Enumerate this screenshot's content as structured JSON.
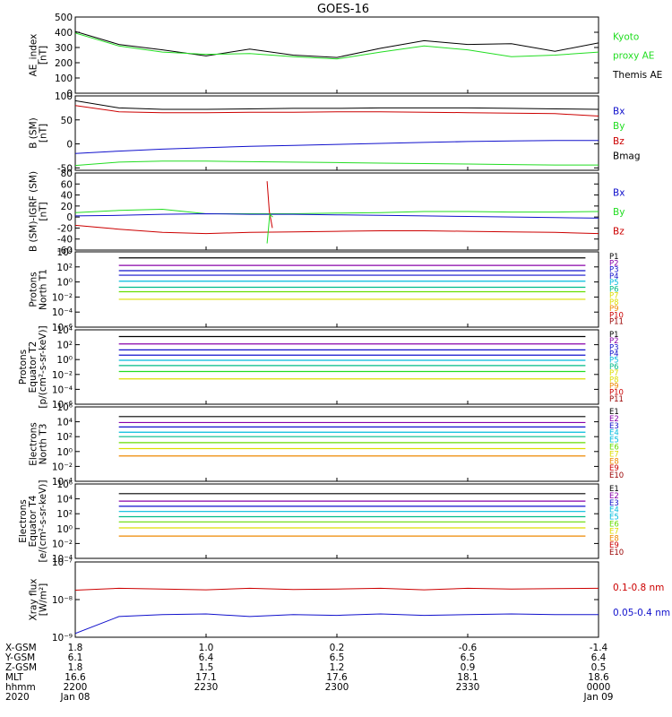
{
  "title": "GOES-16",
  "colors": {
    "black": "#000000",
    "green": "#22dd22",
    "blue": "#1010cc",
    "red": "#cc0000",
    "purple": "#8800aa",
    "cyan": "#00bbdd",
    "teal": "#00bb88",
    "lime": "#66dd00",
    "yellow": "#dddd00",
    "orange": "#ee8800",
    "darkred": "#990000",
    "maroon": "#770000"
  },
  "panels": [
    {
      "key": "ae",
      "ylabel": [
        "AE_index",
        "[nT]"
      ],
      "ylim": [
        0,
        500
      ],
      "log": false,
      "ticks": [
        "0",
        "100",
        "200",
        "300",
        "400",
        "500"
      ],
      "tickvals": [
        0,
        100,
        200,
        300,
        400,
        500
      ],
      "legend": [
        {
          "text": "Kyoto",
          "color": "green"
        },
        {
          "text": "proxy AE",
          "color": "green"
        },
        {
          "text": "Themis AE",
          "color": "black"
        }
      ]
    },
    {
      "key": "bsm",
      "ylabel": [
        "B (SM)",
        "[nT]"
      ],
      "ylim": [
        -55,
        100
      ],
      "log": false,
      "ticks": [
        "-50",
        "0",
        "50",
        "100"
      ],
      "tickvals": [
        -50,
        0,
        50,
        100
      ],
      "legend": [
        {
          "text": "Bx",
          "color": "blue"
        },
        {
          "text": "By",
          "color": "green"
        },
        {
          "text": "Bz",
          "color": "red"
        },
        {
          "text": "Bmag",
          "color": "black"
        }
      ]
    },
    {
      "key": "bigrf",
      "ylabel": [
        "B (SM)-IGRF (SM)",
        "[nT]"
      ],
      "ylim": [
        -60,
        80
      ],
      "log": false,
      "ticks": [
        "-60",
        "-40",
        "-20",
        "0",
        "20",
        "40",
        "60",
        "80"
      ],
      "tickvals": [
        -60,
        -40,
        -20,
        0,
        20,
        40,
        60,
        80
      ],
      "legend": [
        {
          "text": "Bx",
          "color": "blue"
        },
        {
          "text": "By",
          "color": "green"
        },
        {
          "text": "Bz",
          "color": "red"
        }
      ]
    },
    {
      "key": "pt1",
      "ylabel": [
        "Protons",
        "North T1"
      ],
      "ylim": [
        -6,
        4
      ],
      "log": true,
      "ticks": [
        "10⁻⁶",
        "10⁻⁴",
        "10⁻²",
        "10⁰",
        "10²",
        "10⁴"
      ],
      "tickvals": [
        -6,
        -4,
        -2,
        0,
        2,
        4
      ],
      "legend": [
        {
          "text": "P1",
          "color": "black"
        },
        {
          "text": "P2",
          "color": "purple"
        },
        {
          "text": "P3",
          "color": "blue"
        },
        {
          "text": "P4",
          "color": "blue"
        },
        {
          "text": "P5",
          "color": "cyan"
        },
        {
          "text": "P6",
          "color": "teal"
        },
        {
          "text": "P7",
          "color": "yellow"
        },
        {
          "text": "P8",
          "color": "yellow"
        },
        {
          "text": "P9",
          "color": "orange"
        },
        {
          "text": "P10",
          "color": "red"
        },
        {
          "text": "P11",
          "color": "darkred"
        }
      ]
    },
    {
      "key": "pt2",
      "ylabel": [
        "Protons",
        "Equator T2",
        "[p/(cm²-s-sr-keV)]"
      ],
      "ylim": [
        -6,
        4
      ],
      "log": true,
      "ticks": [
        "10⁻⁶",
        "10⁻⁴",
        "10⁻²",
        "10⁰",
        "10²",
        "10⁴"
      ],
      "tickvals": [
        -6,
        -4,
        -2,
        0,
        2,
        4
      ],
      "legend": [
        {
          "text": "P1",
          "color": "black"
        },
        {
          "text": "P2",
          "color": "purple"
        },
        {
          "text": "P3",
          "color": "blue"
        },
        {
          "text": "P4",
          "color": "blue"
        },
        {
          "text": "P5",
          "color": "cyan"
        },
        {
          "text": "P6",
          "color": "teal"
        },
        {
          "text": "P7",
          "color": "yellow"
        },
        {
          "text": "P8",
          "color": "yellow"
        },
        {
          "text": "P9",
          "color": "orange"
        },
        {
          "text": "P10",
          "color": "red"
        },
        {
          "text": "P11",
          "color": "darkred"
        }
      ]
    },
    {
      "key": "et3",
      "ylabel": [
        "Electrons",
        "North T3"
      ],
      "ylim": [
        -4,
        6
      ],
      "log": true,
      "ticks": [
        "10⁻⁴",
        "10⁻²",
        "10⁰",
        "10²",
        "10⁴",
        "10⁶"
      ],
      "tickvals": [
        -4,
        -2,
        0,
        2,
        4,
        6
      ],
      "legend": [
        {
          "text": "E1",
          "color": "black"
        },
        {
          "text": "E2",
          "color": "purple"
        },
        {
          "text": "E3",
          "color": "blue"
        },
        {
          "text": "E4",
          "color": "cyan"
        },
        {
          "text": "E5",
          "color": "cyan"
        },
        {
          "text": "E6",
          "color": "lime"
        },
        {
          "text": "E7",
          "color": "yellow"
        },
        {
          "text": "E8",
          "color": "orange"
        },
        {
          "text": "E9",
          "color": "red"
        },
        {
          "text": "E10",
          "color": "darkred"
        }
      ]
    },
    {
      "key": "et4",
      "ylabel": [
        "Electrons",
        "Equator T4",
        "[e/(cm²-s-sr-keV)]"
      ],
      "ylim": [
        -4,
        6
      ],
      "log": true,
      "ticks": [
        "10⁻⁴",
        "10⁻²",
        "10⁰",
        "10²",
        "10⁴",
        "10⁶"
      ],
      "tickvals": [
        -4,
        -2,
        0,
        2,
        4,
        6
      ],
      "legend": [
        {
          "text": "E1",
          "color": "black"
        },
        {
          "text": "E2",
          "color": "purple"
        },
        {
          "text": "E3",
          "color": "blue"
        },
        {
          "text": "E4",
          "color": "cyan"
        },
        {
          "text": "E5",
          "color": "cyan"
        },
        {
          "text": "E6",
          "color": "lime"
        },
        {
          "text": "E7",
          "color": "yellow"
        },
        {
          "text": "E8",
          "color": "orange"
        },
        {
          "text": "E9",
          "color": "red"
        },
        {
          "text": "E10",
          "color": "darkred"
        }
      ]
    },
    {
      "key": "xray",
      "ylabel": [
        "Xray flux",
        "[W/m²]"
      ],
      "ylim": [
        -9,
        -7
      ],
      "log": true,
      "ticks": [
        "10⁻⁹",
        "10⁻⁸",
        "10⁻⁷"
      ],
      "tickvals": [
        -9,
        -8,
        -7
      ],
      "legend": [
        {
          "text": "0.1-0.8 nm",
          "color": "red"
        },
        {
          "text": "0.05-0.4 nm",
          "color": "blue"
        }
      ]
    }
  ],
  "xaxis": {
    "range": [
      0,
      120
    ],
    "row_labels": [
      "X-GSM",
      "Y-GSM",
      "Z-GSM",
      "MLT",
      "hhmm",
      "2020"
    ],
    "columns": [
      {
        "x": 0,
        "vals": [
          "1.8",
          "6.1",
          "1.8",
          "16.6",
          "2200",
          "Jan 08"
        ]
      },
      {
        "x": 30,
        "vals": [
          "1.0",
          "6.4",
          "1.5",
          "17.1",
          "2230",
          ""
        ]
      },
      {
        "x": 60,
        "vals": [
          "0.2",
          "6.5",
          "1.2",
          "17.6",
          "2300",
          ""
        ]
      },
      {
        "x": 90,
        "vals": [
          "-0.6",
          "6.5",
          "0.9",
          "18.1",
          "2330",
          ""
        ]
      },
      {
        "x": 120,
        "vals": [
          "-1.4",
          "6.4",
          "0.5",
          "18.6",
          "0000",
          "Jan 09"
        ]
      }
    ]
  },
  "chart_data": {
    "type": "line",
    "title": "GOES-16",
    "x_units_minutes_from": "2200",
    "x": [
      0,
      10,
      20,
      30,
      40,
      50,
      60,
      70,
      80,
      90,
      100,
      110,
      120
    ],
    "series": [
      {
        "panel": "ae",
        "name": "Kyoto",
        "color": "black",
        "values": [
          405,
          320,
          285,
          245,
          290,
          250,
          235,
          295,
          345,
          320,
          325,
          275,
          330
        ]
      },
      {
        "panel": "ae",
        "name": "proxy AE",
        "color": "green",
        "values": [
          395,
          310,
          270,
          255,
          260,
          240,
          225,
          270,
          310,
          285,
          240,
          250,
          270
        ]
      },
      {
        "panel": "bsm",
        "name": "Bmag",
        "color": "black",
        "values": [
          90,
          75,
          72,
          72,
          73,
          74,
          74,
          75,
          75,
          75,
          74,
          73,
          72
        ]
      },
      {
        "panel": "bsm",
        "name": "Bz",
        "color": "red",
        "values": [
          80,
          67,
          65,
          65,
          66,
          66,
          67,
          67,
          66,
          65,
          64,
          63,
          58
        ]
      },
      {
        "panel": "bsm",
        "name": "Bx",
        "color": "blue",
        "values": [
          -20,
          -15,
          -11,
          -8,
          -5,
          -3,
          -1,
          1,
          3,
          5,
          6,
          7,
          7
        ]
      },
      {
        "panel": "bsm",
        "name": "By",
        "color": "green",
        "values": [
          -45,
          -38,
          -36,
          -36,
          -37,
          -38,
          -39,
          -40,
          -41,
          -42,
          -43,
          -44,
          -44
        ]
      },
      {
        "panel": "bigrf",
        "name": "By",
        "color": "green",
        "values": [
          8,
          12,
          14,
          6,
          6,
          6,
          7,
          8,
          10,
          10,
          9,
          9,
          10
        ]
      },
      {
        "panel": "bigrf",
        "name": "Bx",
        "color": "blue",
        "values": [
          2,
          3,
          5,
          6,
          5,
          5,
          4,
          3,
          2,
          1,
          0,
          -1,
          -2
        ]
      },
      {
        "panel": "bigrf",
        "name": "Bz",
        "color": "red",
        "values": [
          -15,
          -22,
          -28,
          -30,
          -28,
          -27,
          -26,
          -25,
          -25,
          -26,
          -27,
          -28,
          -30
        ]
      }
    ],
    "bigrf_spike": [
      {
        "name": "Bz",
        "color": "red",
        "x": [
          44,
          44.5,
          45.2
        ],
        "values": [
          65,
          10,
          -20
        ]
      },
      {
        "name": "By",
        "color": "green",
        "x": [
          44,
          44.6,
          45.3
        ],
        "values": [
          -48,
          5,
          0
        ]
      }
    ],
    "flux_levels": {
      "pt1": [
        {
          "c": "black",
          "v": 3.2
        },
        {
          "c": "purple",
          "v": 2.2
        },
        {
          "c": "blue",
          "v": 1.5
        },
        {
          "c": "blue",
          "v": 0.9
        },
        {
          "c": "cyan",
          "v": 0.1
        },
        {
          "c": "teal",
          "v": -0.7
        },
        {
          "c": "lime",
          "v": -1.3
        },
        {
          "c": "yellow",
          "v": -2.3
        }
      ],
      "pt2": [
        {
          "c": "black",
          "v": 3.1
        },
        {
          "c": "purple",
          "v": 2.1
        },
        {
          "c": "blue",
          "v": 1.3
        },
        {
          "c": "blue",
          "v": 0.6
        },
        {
          "c": "cyan",
          "v": -0.1
        },
        {
          "c": "teal",
          "v": -0.8
        },
        {
          "c": "green",
          "v": -1.6
        },
        {
          "c": "yellow",
          "v": -2.6
        }
      ],
      "et3": [
        {
          "c": "black",
          "v": 4.7
        },
        {
          "c": "purple",
          "v": 3.9
        },
        {
          "c": "blue",
          "v": 3.3
        },
        {
          "c": "cyan",
          "v": 2.6
        },
        {
          "c": "teal",
          "v": 2.0
        },
        {
          "c": "lime",
          "v": 1.2
        },
        {
          "c": "yellow",
          "v": 0.4
        },
        {
          "c": "orange",
          "v": -0.6
        }
      ],
      "et4": [
        {
          "c": "black",
          "v": 4.7
        },
        {
          "c": "purple",
          "v": 3.7
        },
        {
          "c": "blue",
          "v": 3.0
        },
        {
          "c": "cyan",
          "v": 2.3
        },
        {
          "c": "teal",
          "v": 1.6
        },
        {
          "c": "lime",
          "v": 0.9
        },
        {
          "c": "yellow",
          "v": 0.1
        },
        {
          "c": "orange",
          "v": -1.0
        }
      ]
    },
    "xray_series": [
      {
        "name": "0.1-0.8 nm",
        "color": "red",
        "values": [
          -7.75,
          -7.7,
          -7.72,
          -7.74,
          -7.7,
          -7.73,
          -7.72,
          -7.7,
          -7.74,
          -7.7,
          -7.72,
          -7.71,
          -7.7
        ]
      },
      {
        "name": "0.05-0.4 nm",
        "color": "blue",
        "values": [
          -8.9,
          -8.45,
          -8.4,
          -8.38,
          -8.45,
          -8.4,
          -8.42,
          -8.38,
          -8.42,
          -8.4,
          -8.38,
          -8.4,
          -8.4
        ]
      }
    ]
  }
}
